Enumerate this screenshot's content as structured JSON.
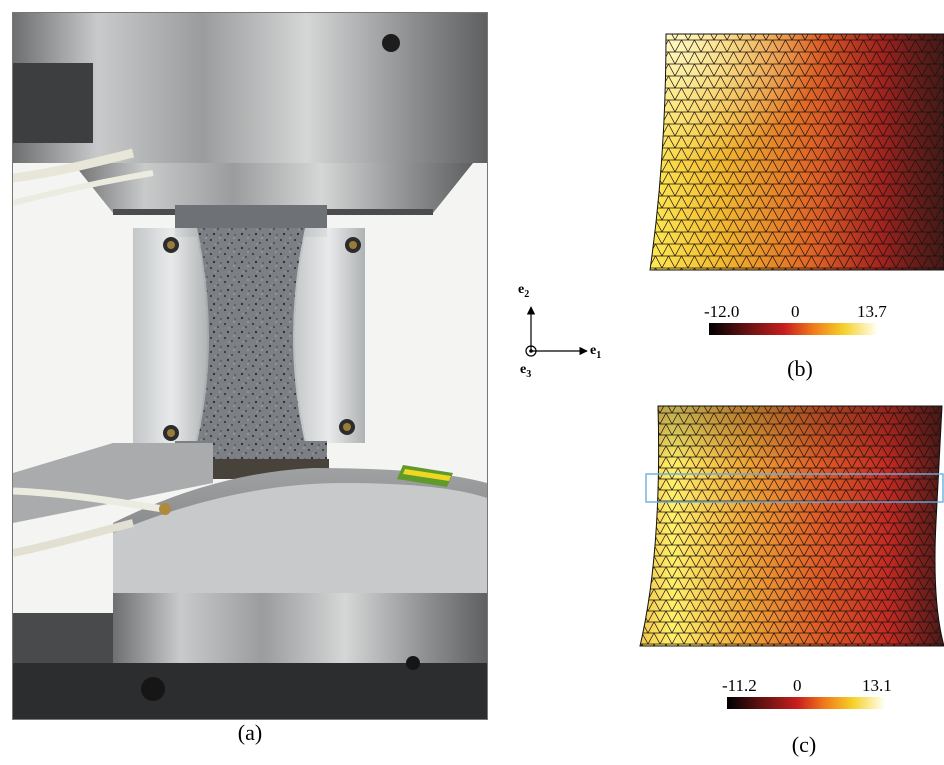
{
  "panel_a": {
    "caption": "(a)",
    "photo_subject": "biaxial-test-rig-photo"
  },
  "axes": {
    "e1": {
      "base": "e",
      "sub": "1"
    },
    "e2": {
      "base": "e",
      "sub": "2"
    },
    "e3": {
      "base": "e",
      "sub": "3"
    }
  },
  "panel_b": {
    "caption": "(b)",
    "colorbar": {
      "min": "-12.0",
      "mid": "0",
      "max": "13.7"
    },
    "colors": {
      "low": "#000000",
      "mid": "#d42020",
      "high": "#ffffe0"
    }
  },
  "panel_c": {
    "caption": "(c)",
    "colorbar": {
      "min": "-11.2",
      "mid": "0",
      "max": "13.1"
    },
    "highlight_color": "#6aaee0"
  }
}
